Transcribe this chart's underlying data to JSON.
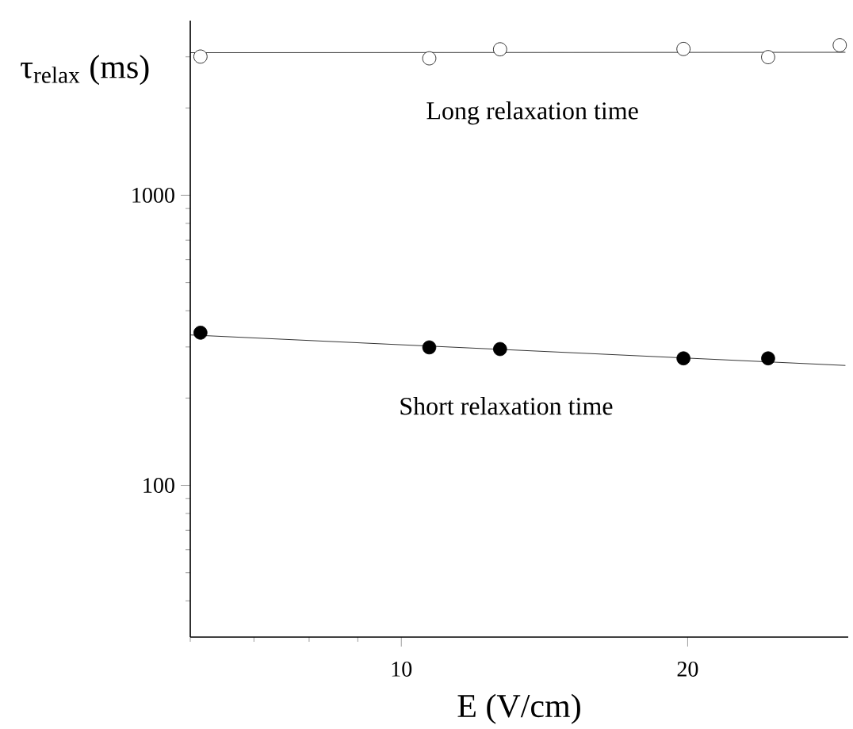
{
  "chart_data": {
    "type": "scatter",
    "xlabel": "E  (V/cm)",
    "ylabel": "τ$_{relax}$ (ms)",
    "log": "xy",
    "xlim": [
      6,
      29.5
    ],
    "ylim": [
      30,
      4000
    ],
    "xticks": [
      {
        "value": 6,
        "label": null
      },
      {
        "value": 7,
        "label": null
      },
      {
        "value": 8,
        "label": null
      },
      {
        "value": 9,
        "label": null
      },
      10,
      20
    ],
    "yticks": [
      {
        "value": 40,
        "label": null
      },
      {
        "value": 50,
        "label": null
      },
      {
        "value": 60,
        "label": null
      },
      {
        "value": 70,
        "label": null
      },
      {
        "value": 80,
        "label": null
      },
      {
        "value": 90,
        "label": null
      },
      100,
      {
        "value": 200,
        "label": null
      },
      {
        "value": 300,
        "label": null
      },
      {
        "value": 400,
        "label": null
      },
      {
        "value": 500,
        "label": null
      },
      {
        "value": 600,
        "label": null
      },
      {
        "value": 700,
        "label": null
      },
      {
        "value": 800,
        "label": null
      },
      {
        "value": 900,
        "label": null
      },
      1000,
      {
        "value": 2000,
        "label": null
      },
      {
        "value": 3000,
        "label": null
      }
    ],
    "grid": false,
    "series": [
      {
        "marker": "circle",
        "color": "#ffffff",
        "x": [
          6.15,
          10.7,
          12.7,
          19.8,
          24.3,
          28.9
        ],
        "values": [
          3006,
          2965,
          3185,
          3193,
          2993,
          3290
        ]
      },
      {
        "marker": "circle",
        "color": "#000000",
        "x": [
          6.15,
          10.7,
          12.7,
          19.8,
          24.3
        ],
        "values": [
          336,
          299,
          295,
          274,
          274
        ]
      },
      {
        "type": "line",
        "marker": "none",
        "color": "#000000",
        "x": [
          6,
          29.3
        ],
        "values": [
          3100,
          3110
        ]
      },
      {
        "type": "line",
        "marker": "none",
        "color": "#000000",
        "x": [
          6,
          29.3
        ],
        "values": [
          330,
          259
        ]
      }
    ],
    "annotations": [
      "Long relaxation time",
      "Short relaxation time"
    ]
  }
}
